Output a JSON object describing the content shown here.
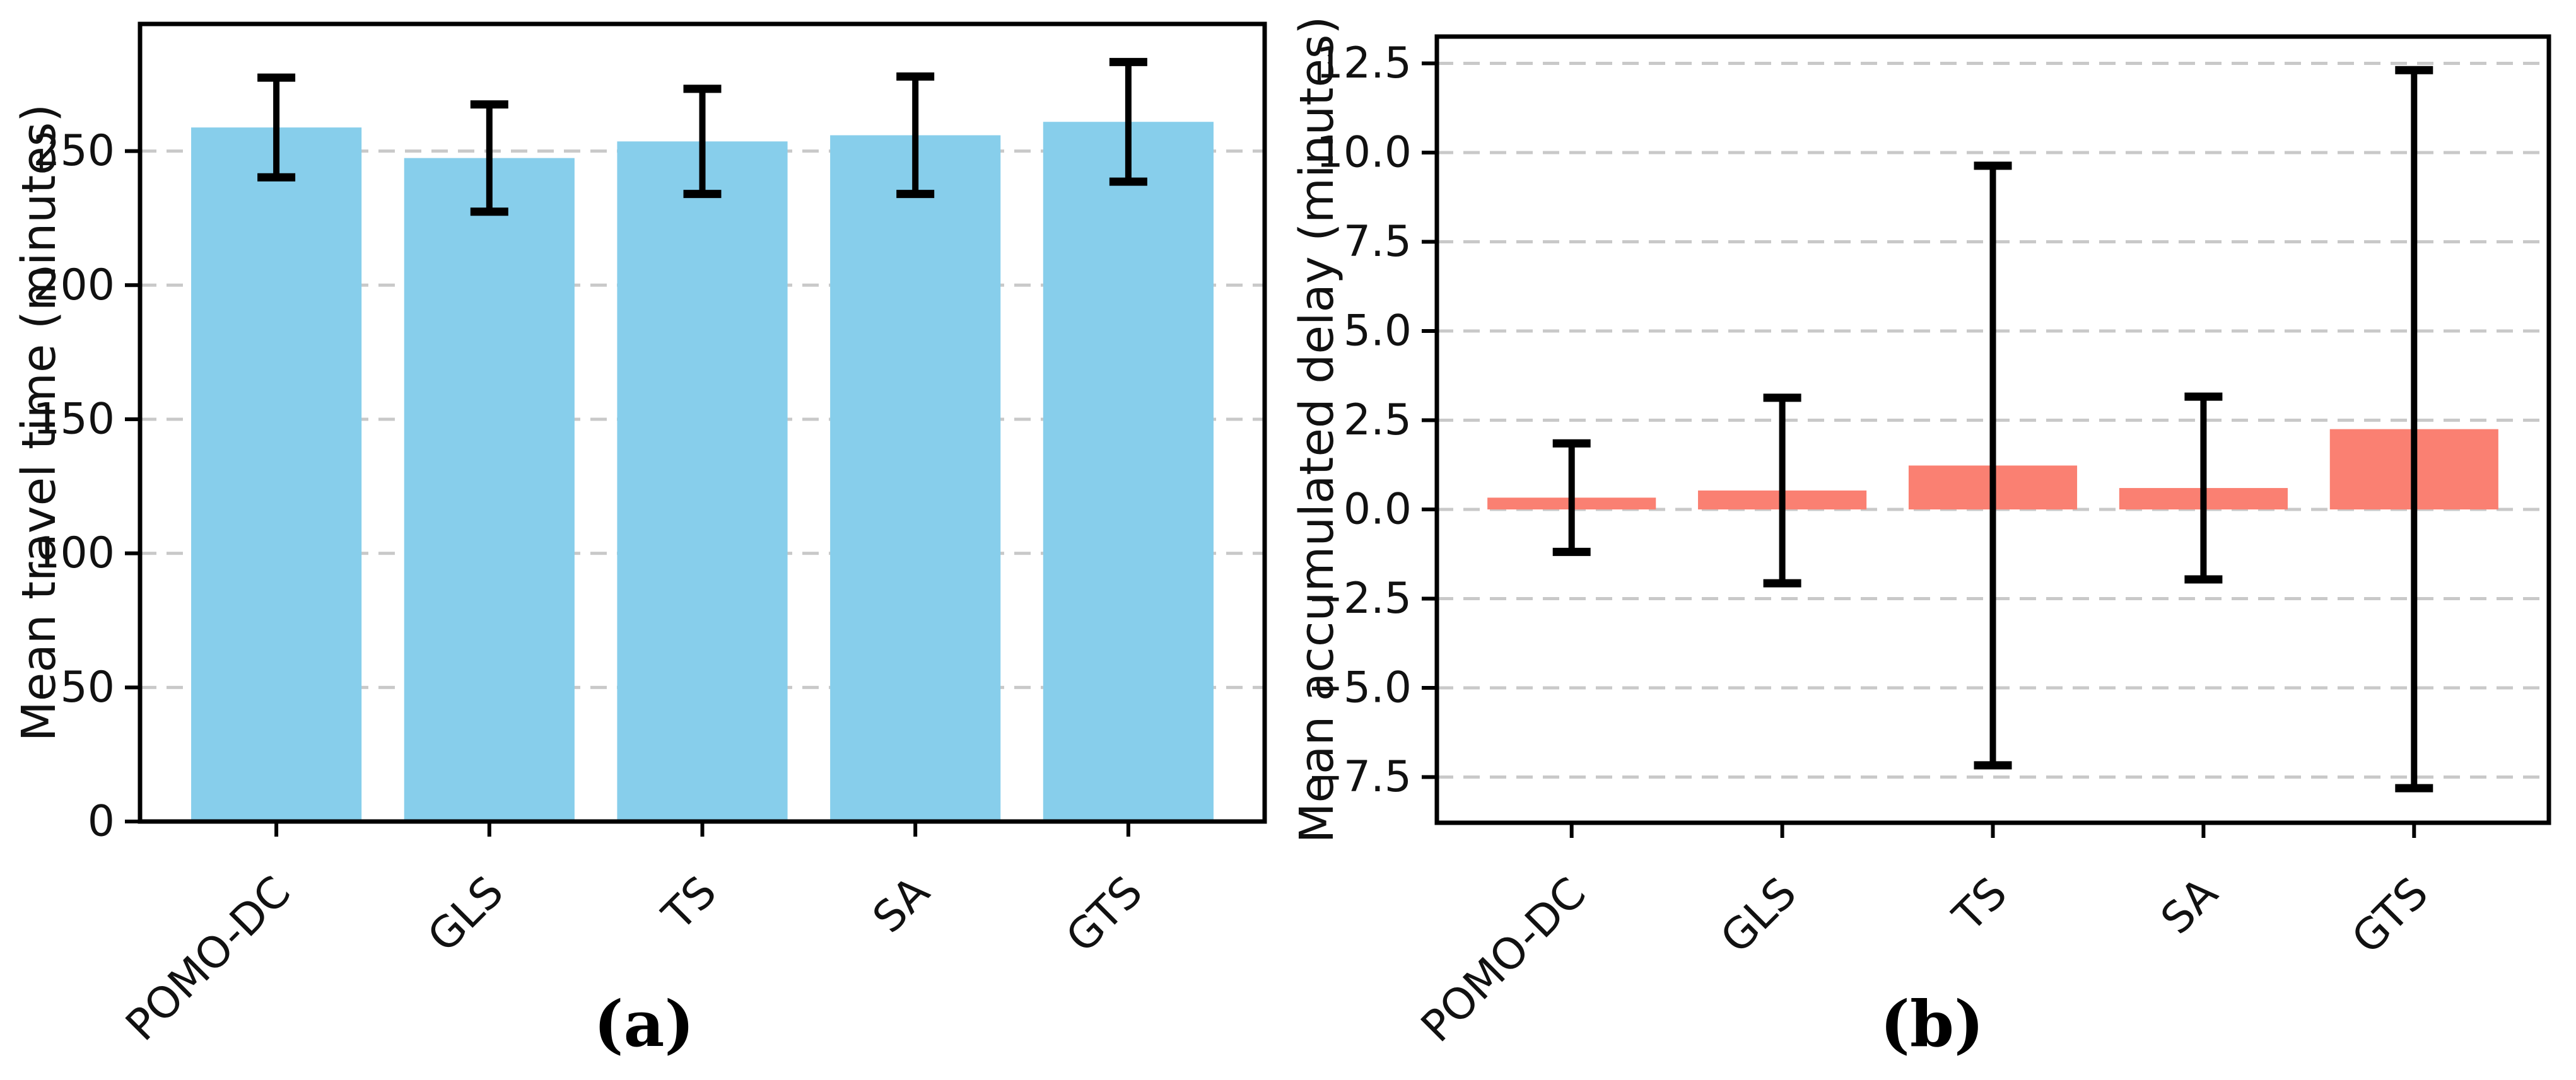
{
  "figure": {
    "background": "#ffffff",
    "colors": {
      "travel_bar": "#87CEEB",
      "delay_bar": "#FA8072",
      "grid": "#C9C9C9",
      "axis": "#000000",
      "error_bar": "#000000",
      "text": "#111111"
    }
  },
  "chart_data": [
    {
      "id": "a",
      "type": "bar",
      "caption": "(a)",
      "ylabel": "Mean travel time (minutes)",
      "xlabel": "",
      "categories": [
        "POMO-DC",
        "GLS",
        "TS",
        "SA",
        "GTS"
      ],
      "values": [
        258.8,
        247.4,
        253.6,
        255.9,
        260.9
      ],
      "error_bars": [
        18.6,
        20.0,
        19.6,
        21.9,
        22.3
      ],
      "bar_color": "#87CEEB",
      "ylim": [
        0,
        297.4
      ],
      "yticks": [
        0,
        50,
        100,
        150,
        200,
        250
      ],
      "ytick_labels": [
        "0",
        "50",
        "100",
        "150",
        "200",
        "250"
      ],
      "grid": true,
      "grid_style": "dashed",
      "legend": "none"
    },
    {
      "id": "b",
      "type": "bar",
      "caption": "(b)",
      "ylabel": "Mean accumulated delay (minutes)",
      "xlabel": "",
      "categories": [
        "POMO-DC",
        "GLS",
        "TS",
        "SA",
        "GTS"
      ],
      "values": [
        0.33,
        0.53,
        1.23,
        0.6,
        2.25
      ],
      "error_bars": [
        1.52,
        2.6,
        8.4,
        2.56,
        10.06
      ],
      "bar_color": "#FA8072",
      "ylim": [
        -8.78,
        13.25
      ],
      "yticks": [
        -7.5,
        -5.0,
        -2.5,
        0.0,
        2.5,
        5.0,
        7.5,
        10.0,
        12.5
      ],
      "ytick_labels": [
        "−7.5",
        "−5.0",
        "−2.5",
        "0.0",
        "2.5",
        "5.0",
        "7.5",
        "10.0",
        "12.5"
      ],
      "grid": true,
      "grid_style": "dashed",
      "legend": "none"
    }
  ]
}
